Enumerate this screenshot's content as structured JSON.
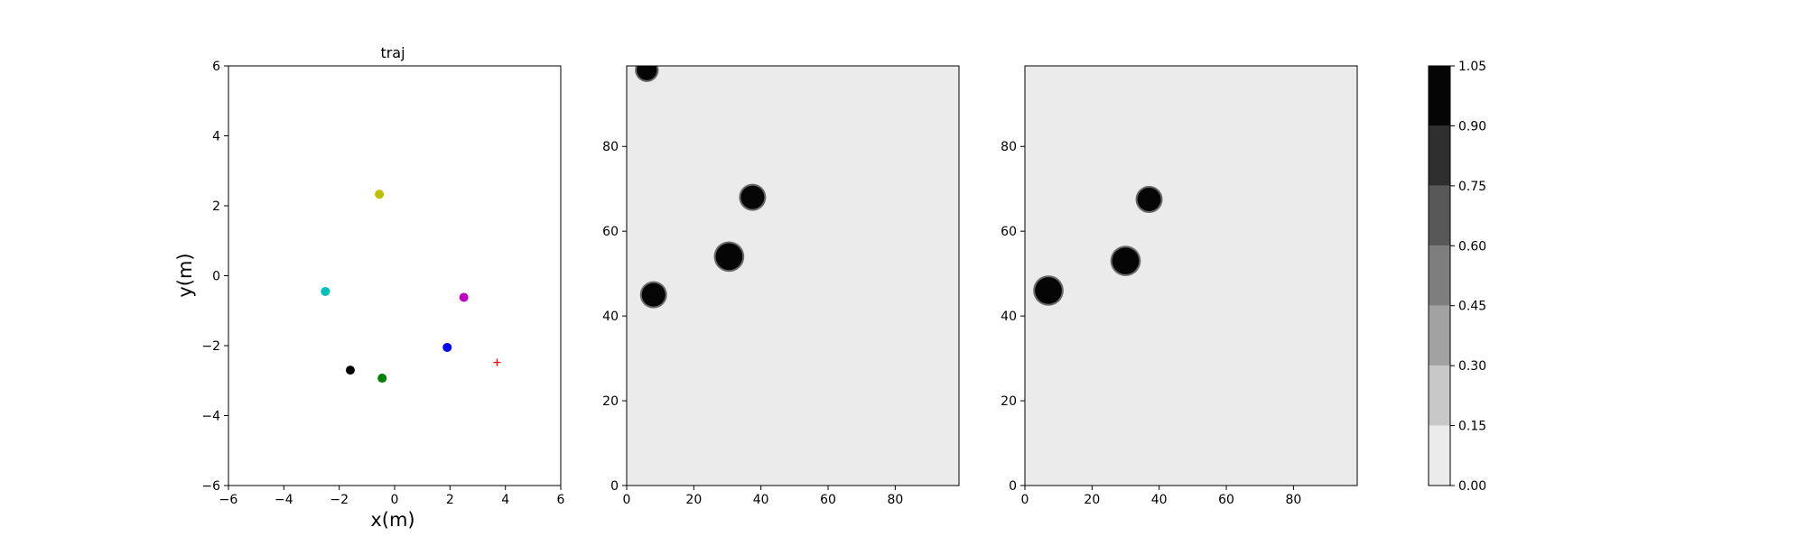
{
  "chart_data": [
    {
      "type": "scatter",
      "title": "traj",
      "xlabel": "x(m)",
      "ylabel": "y(m)",
      "xlim": [
        -6,
        6
      ],
      "ylim": [
        -6,
        6
      ],
      "xticks": [
        -6,
        -4,
        -2,
        0,
        2,
        4,
        6
      ],
      "yticks": [
        -6,
        -4,
        -2,
        0,
        2,
        4,
        6
      ],
      "grid": false,
      "points": [
        {
          "x": -0.55,
          "y": 2.33,
          "color": "#bfbf00",
          "marker": "dot"
        },
        {
          "x": -2.5,
          "y": -0.45,
          "color": "#00bfbf",
          "marker": "dot"
        },
        {
          "x": 2.5,
          "y": -0.62,
          "color": "#bf00bf",
          "marker": "dot"
        },
        {
          "x": 1.9,
          "y": -2.05,
          "color": "#0000ff",
          "marker": "dot"
        },
        {
          "x": -1.6,
          "y": -2.7,
          "color": "#000000",
          "marker": "dot"
        },
        {
          "x": -0.45,
          "y": -2.93,
          "color": "#008000",
          "marker": "dot"
        },
        {
          "x": 3.7,
          "y": -2.48,
          "color": "#ff0000",
          "marker": "plus"
        }
      ]
    },
    {
      "type": "heatmap",
      "title": "",
      "xlim": [
        0,
        99
      ],
      "ylim": [
        0,
        99
      ],
      "xticks": [
        0,
        20,
        40,
        60,
        80
      ],
      "yticks": [
        0,
        20,
        40,
        60,
        80
      ],
      "background_level": 0.05,
      "blobs": [
        {
          "x": 6,
          "y": 98,
          "r": 3
        },
        {
          "x": 37.5,
          "y": 68,
          "r": 3.5
        },
        {
          "x": 30.5,
          "y": 54,
          "r": 4
        },
        {
          "x": 8,
          "y": 45,
          "r": 3.5
        }
      ]
    },
    {
      "type": "heatmap",
      "title": "",
      "xlim": [
        0,
        99
      ],
      "ylim": [
        0,
        99
      ],
      "xticks": [
        0,
        20,
        40,
        60,
        80
      ],
      "yticks": [
        0,
        20,
        40,
        60,
        80
      ],
      "background_level": 0.05,
      "blobs": [
        {
          "x": 37,
          "y": 67.5,
          "r": 3.5
        },
        {
          "x": 30,
          "y": 53,
          "r": 4
        },
        {
          "x": 7,
          "y": 46,
          "r": 4
        }
      ]
    }
  ],
  "colorbar": {
    "levels": [
      0.0,
      0.15,
      0.3,
      0.45,
      0.6,
      0.75,
      0.9,
      1.05
    ],
    "tick_labels": [
      "0.00",
      "0.15",
      "0.30",
      "0.45",
      "0.60",
      "0.75",
      "0.90",
      "1.05"
    ],
    "band_colors": [
      "#ebebeb",
      "#c8c8c8",
      "#a2a2a2",
      "#7e7e7e",
      "#585858",
      "#2f2f2f",
      "#050505"
    ]
  }
}
